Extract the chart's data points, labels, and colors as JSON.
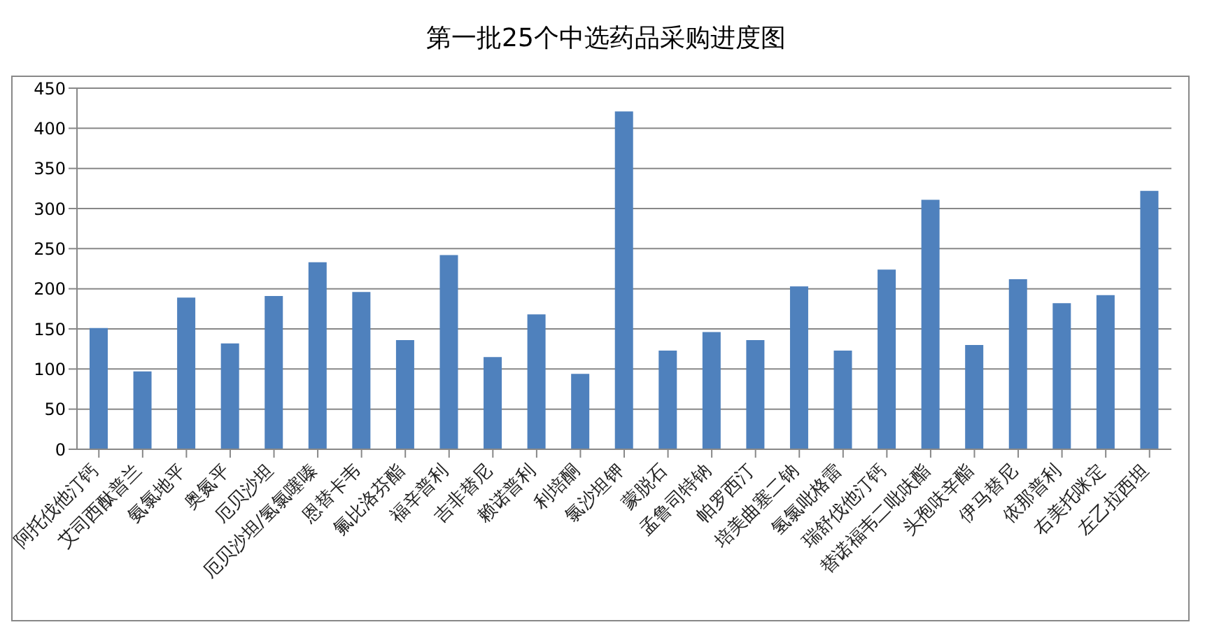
{
  "chart_data": {
    "type": "bar",
    "title": "第一批25个中选药品采购进度图",
    "categories": [
      "阿托伐他汀钙",
      "艾司西酞普兰",
      "氨氯地平",
      "奥氮平",
      "厄贝沙坦",
      "厄贝沙坦/氢氯噻嗪",
      "恩替卡韦",
      "氟比洛芬酯",
      "福辛普利",
      "吉非替尼",
      "赖诺普利",
      "利培酮",
      "氯沙坦钾",
      "蒙脱石",
      "孟鲁司特钠",
      "帕罗西汀",
      "培美曲塞二钠",
      "氢氯吡格雷",
      "瑞舒伐他汀钙",
      "替诺福韦二吡呋酯",
      "头孢呋辛酯",
      "伊马替尼",
      "依那普利",
      "右美托咪定",
      "左乙拉西坦"
    ],
    "values": [
      151,
      97,
      189,
      132,
      191,
      233,
      196,
      136,
      242,
      115,
      168,
      94,
      421,
      123,
      146,
      136,
      203,
      123,
      224,
      311,
      130,
      212,
      182,
      192,
      322
    ],
    "color": "#4f81bd",
    "ylim": [
      0,
      450
    ],
    "yticks": [
      0,
      50,
      100,
      150,
      200,
      250,
      300,
      350,
      400,
      450
    ],
    "grid": "y"
  }
}
